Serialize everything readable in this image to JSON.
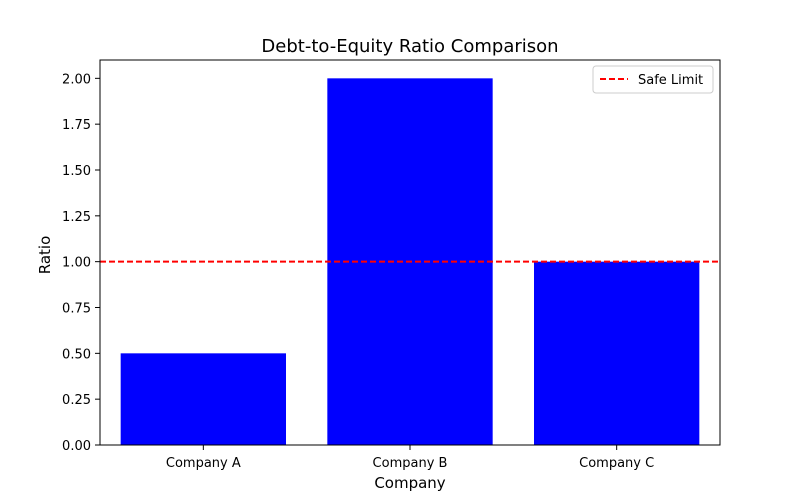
{
  "chart_data": {
    "type": "bar",
    "title": "Debt-to-Equity Ratio Comparison",
    "xlabel": "Company",
    "ylabel": "Ratio",
    "categories": [
      "Company A",
      "Company B",
      "Company C"
    ],
    "values": [
      0.5,
      2.0,
      1.0
    ],
    "bar_color": "#0000ff",
    "ylim": [
      0,
      2.1
    ],
    "yticks": [
      "0.00",
      "0.25",
      "0.50",
      "0.75",
      "1.00",
      "1.25",
      "1.50",
      "1.75",
      "2.00"
    ],
    "grid": false,
    "reference_line": {
      "label": "Safe Limit",
      "y": 1.0,
      "color": "#ff0000",
      "style": "dashed"
    },
    "legend": {
      "position": "upper right",
      "entries": [
        "Safe Limit"
      ]
    }
  }
}
